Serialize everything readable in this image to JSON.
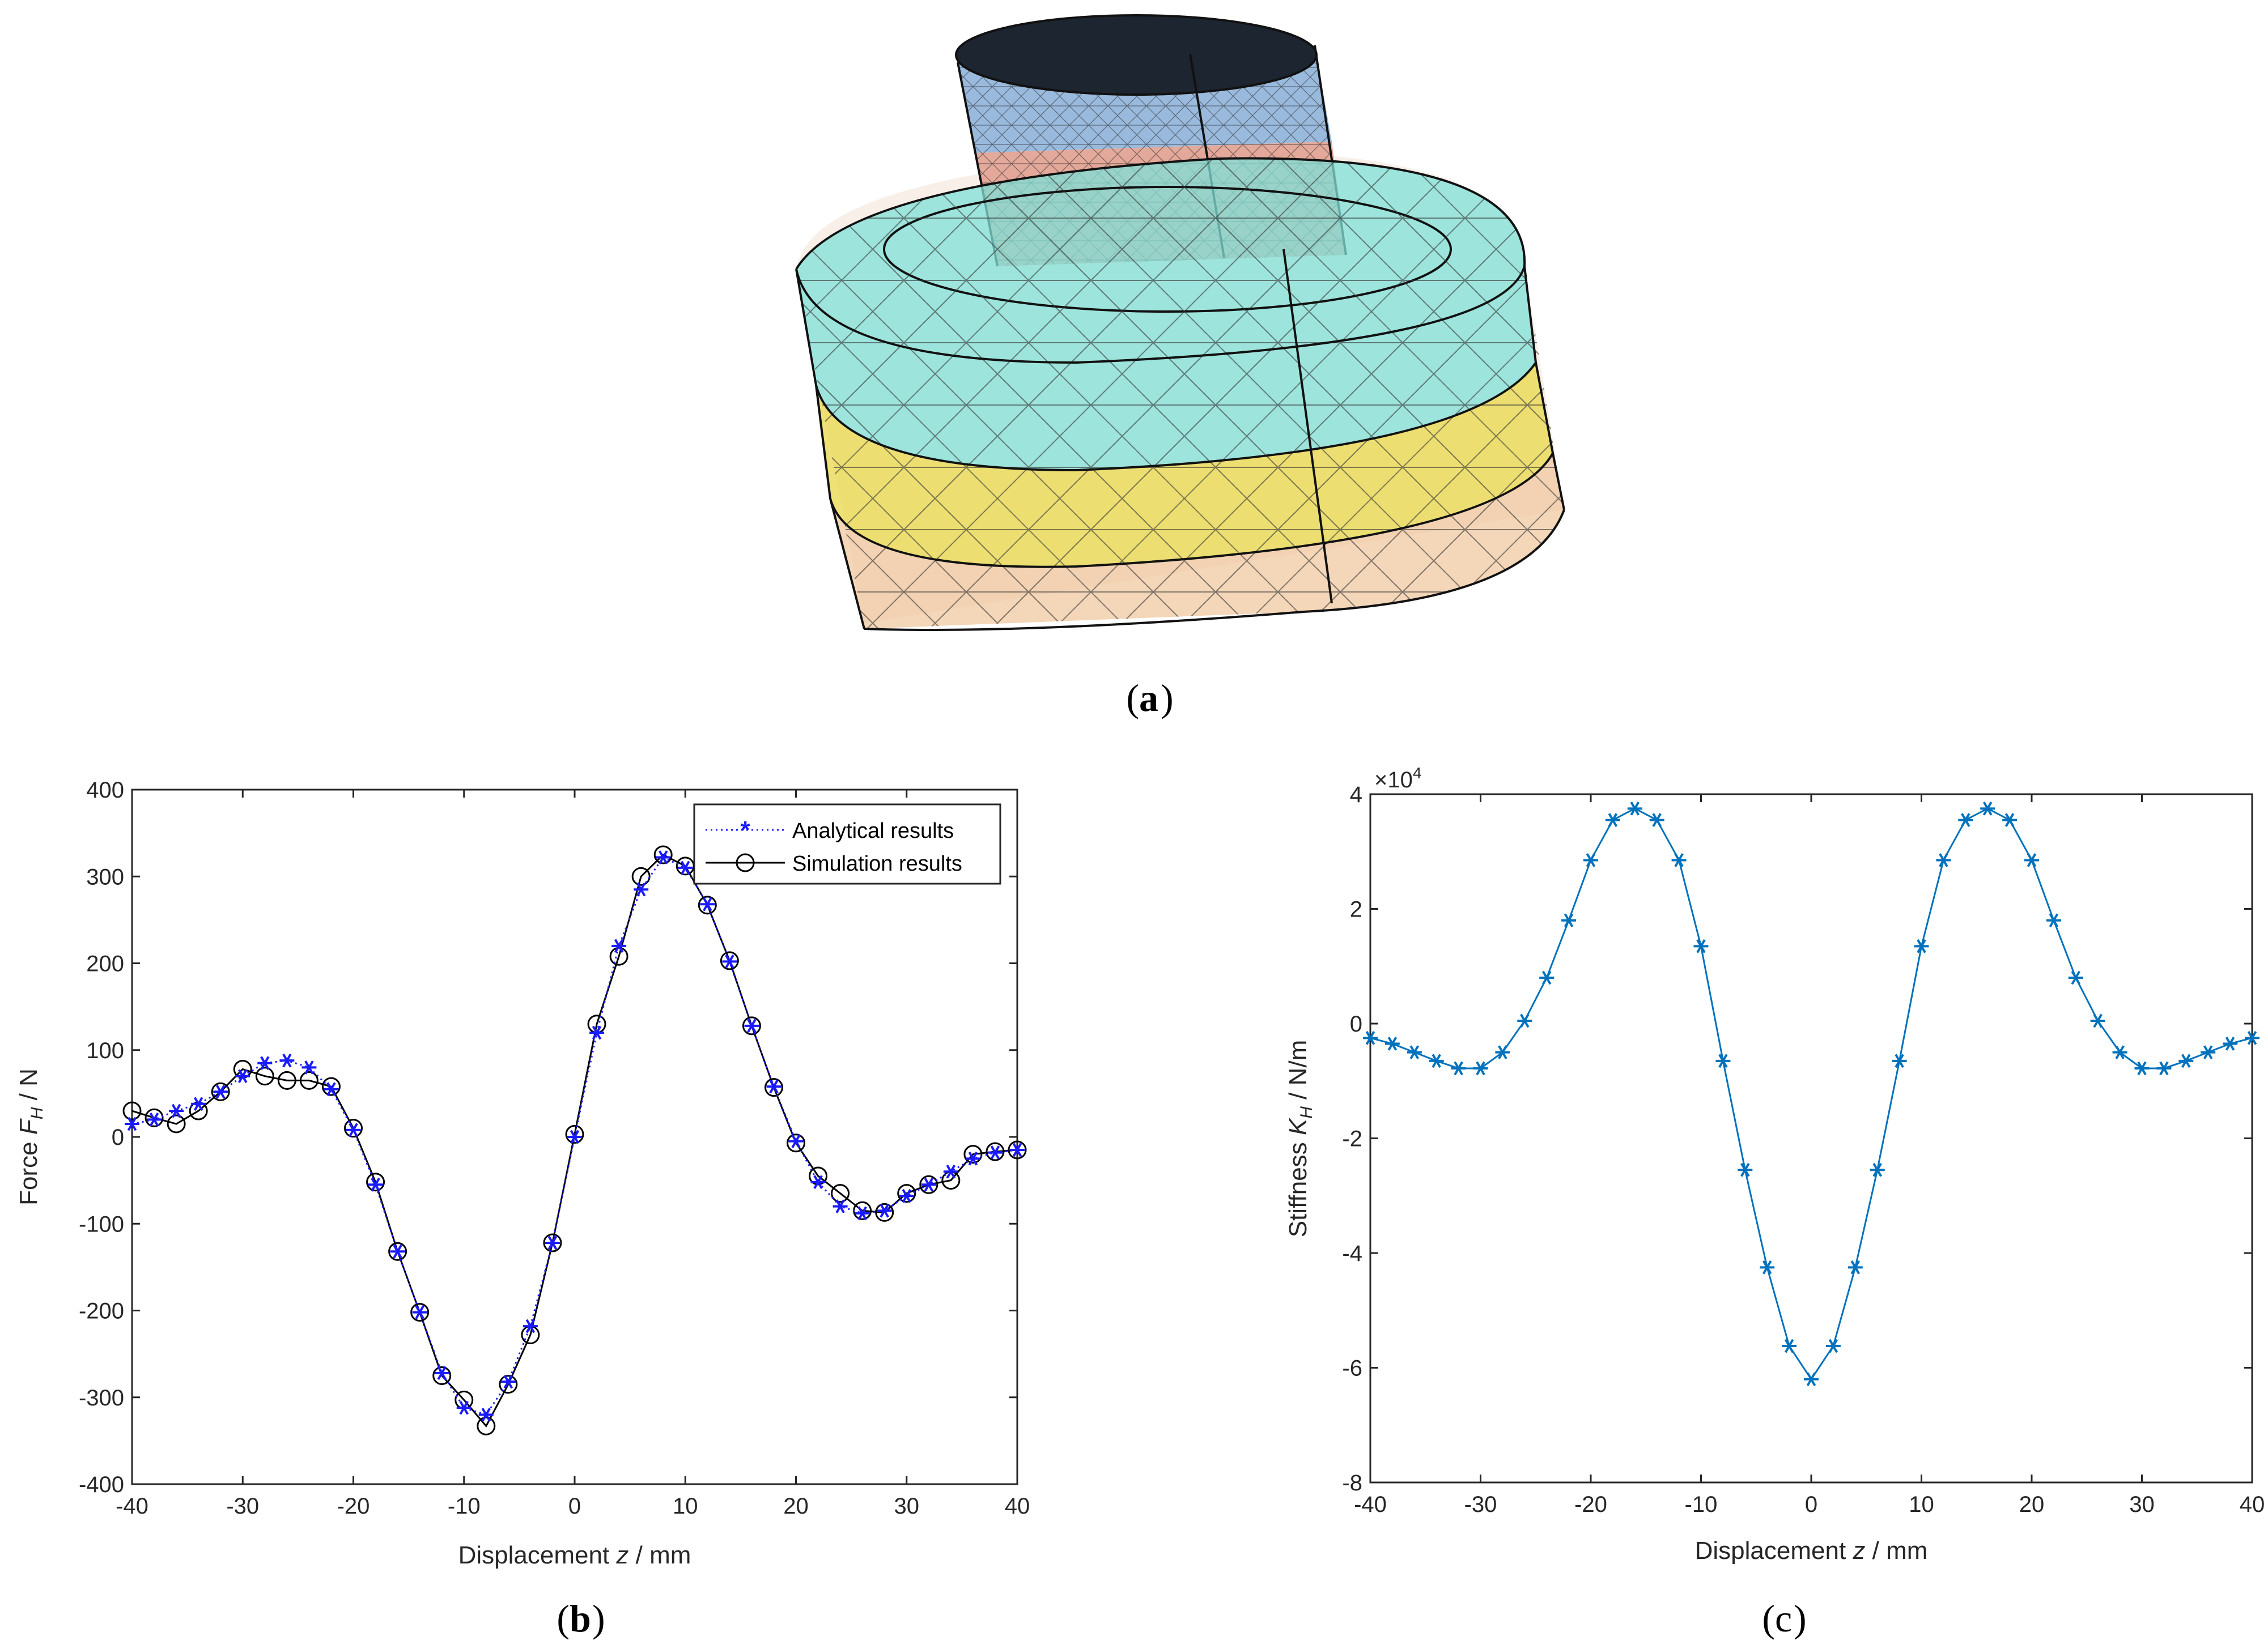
{
  "panels": {
    "a": {
      "open": "(",
      "letter": "a",
      "close": ")"
    },
    "b": {
      "open": "(",
      "letter": "b",
      "close": ")"
    },
    "c": {
      "open": "(",
      "letter": "c",
      "close": ")"
    }
  },
  "colors": {
    "analytical": "#1a1aff",
    "simulation": "#000000",
    "stiffness": "#0072bd",
    "cyl_top": "#8fb3d9",
    "cyl_bottom": "#e0a090",
    "ring_cyan": "#7fe0d8",
    "ring_yellow": "#e8d84a",
    "ring_peach": "#f0c8a0"
  },
  "chart_data": [
    {
      "type": "line",
      "panel": "b",
      "xlabel_prefix": "Displacement ",
      "xlabel_var": "z",
      "xlabel_suffix": " / mm",
      "ylabel_prefix": "Force ",
      "ylabel_var": "F",
      "ylabel_sub": "H",
      "ylabel_suffix": " / N",
      "xlim": [
        -40,
        40
      ],
      "ylim": [
        -400,
        400
      ],
      "xticks": [
        -40,
        -30,
        -20,
        -10,
        0,
        10,
        20,
        30,
        40
      ],
      "yticks": [
        -400,
        -300,
        -200,
        -100,
        0,
        100,
        200,
        300,
        400
      ],
      "legend_position": "top-right",
      "series": [
        {
          "name": "Analytical results",
          "marker": "asterisk",
          "line": "dotted",
          "x": [
            -40,
            -38,
            -36,
            -34,
            -32,
            -30,
            -28,
            -26,
            -24,
            -22,
            -20,
            -18,
            -16,
            -14,
            -12,
            -10,
            -8,
            -6,
            -4,
            -2,
            0,
            2,
            4,
            6,
            8,
            10,
            12,
            14,
            16,
            18,
            20,
            22,
            24,
            26,
            28,
            30,
            32,
            34,
            36,
            38,
            40
          ],
          "y": [
            15,
            20,
            30,
            38,
            52,
            70,
            85,
            88,
            80,
            55,
            8,
            -55,
            -132,
            -202,
            -272,
            -312,
            -320,
            -282,
            -218,
            -122,
            0,
            120,
            220,
            285,
            322,
            310,
            268,
            202,
            128,
            58,
            -5,
            -52,
            -80,
            -88,
            -85,
            -68,
            -55,
            -40,
            -25,
            -18,
            -15
          ]
        },
        {
          "name": "Simulation results",
          "marker": "circle",
          "line": "solid",
          "x": [
            -40,
            -38,
            -36,
            -34,
            -32,
            -30,
            -28,
            -26,
            -24,
            -22,
            -20,
            -18,
            -16,
            -14,
            -12,
            -10,
            -8,
            -6,
            -4,
            -2,
            0,
            2,
            4,
            6,
            8,
            10,
            12,
            14,
            16,
            18,
            20,
            22,
            24,
            26,
            28,
            30,
            32,
            34,
            36,
            38,
            40
          ],
          "y": [
            30,
            22,
            15,
            30,
            52,
            78,
            70,
            65,
            65,
            58,
            10,
            -52,
            -132,
            -202,
            -275,
            -303,
            -333,
            -285,
            -228,
            -122,
            3,
            130,
            208,
            300,
            325,
            312,
            267,
            203,
            128,
            57,
            -7,
            -45,
            -65,
            -85,
            -87,
            -65,
            -55,
            -50,
            -20,
            -17,
            -15
          ]
        }
      ]
    },
    {
      "type": "line",
      "panel": "c",
      "xlabel_prefix": "Displacement ",
      "xlabel_var": "z",
      "xlabel_suffix": " / mm",
      "ylabel_prefix": "Stiffness ",
      "ylabel_var": "K",
      "ylabel_sub": "H",
      "ylabel_suffix": " / N/m",
      "scale_base": "×10",
      "scale_exp": "4",
      "xlim": [
        -40,
        40
      ],
      "ylim": [
        -8,
        4
      ],
      "xticks": [
        -40,
        -30,
        -20,
        -10,
        0,
        10,
        20,
        30,
        40
      ],
      "yticks": [
        -8,
        -6,
        -4,
        -2,
        0,
        2,
        4
      ],
      "series": [
        {
          "name": "Stiffness",
          "marker": "asterisk",
          "line": "solid",
          "x": [
            -40,
            -38,
            -36,
            -34,
            -32,
            -30,
            -28,
            -26,
            -24,
            -22,
            -20,
            -18,
            -16,
            -14,
            -12,
            -10,
            -8,
            -6,
            -4,
            -2,
            0,
            2,
            4,
            6,
            8,
            10,
            12,
            14,
            16,
            18,
            20,
            22,
            24,
            26,
            28,
            30,
            32,
            34,
            36,
            38,
            40
          ],
          "y": [
            -0.25,
            -0.35,
            -0.5,
            -0.65,
            -0.78,
            -0.78,
            -0.5,
            0.05,
            0.8,
            1.8,
            2.85,
            3.55,
            3.75,
            3.55,
            2.85,
            1.35,
            -0.65,
            -2.55,
            -4.25,
            -5.62,
            -6.2,
            -5.62,
            -4.25,
            -2.55,
            -0.65,
            1.35,
            2.85,
            3.55,
            3.75,
            3.55,
            2.85,
            1.8,
            0.8,
            0.05,
            -0.5,
            -0.78,
            -0.78,
            -0.65,
            -0.5,
            -0.35,
            -0.25
          ]
        }
      ]
    }
  ]
}
